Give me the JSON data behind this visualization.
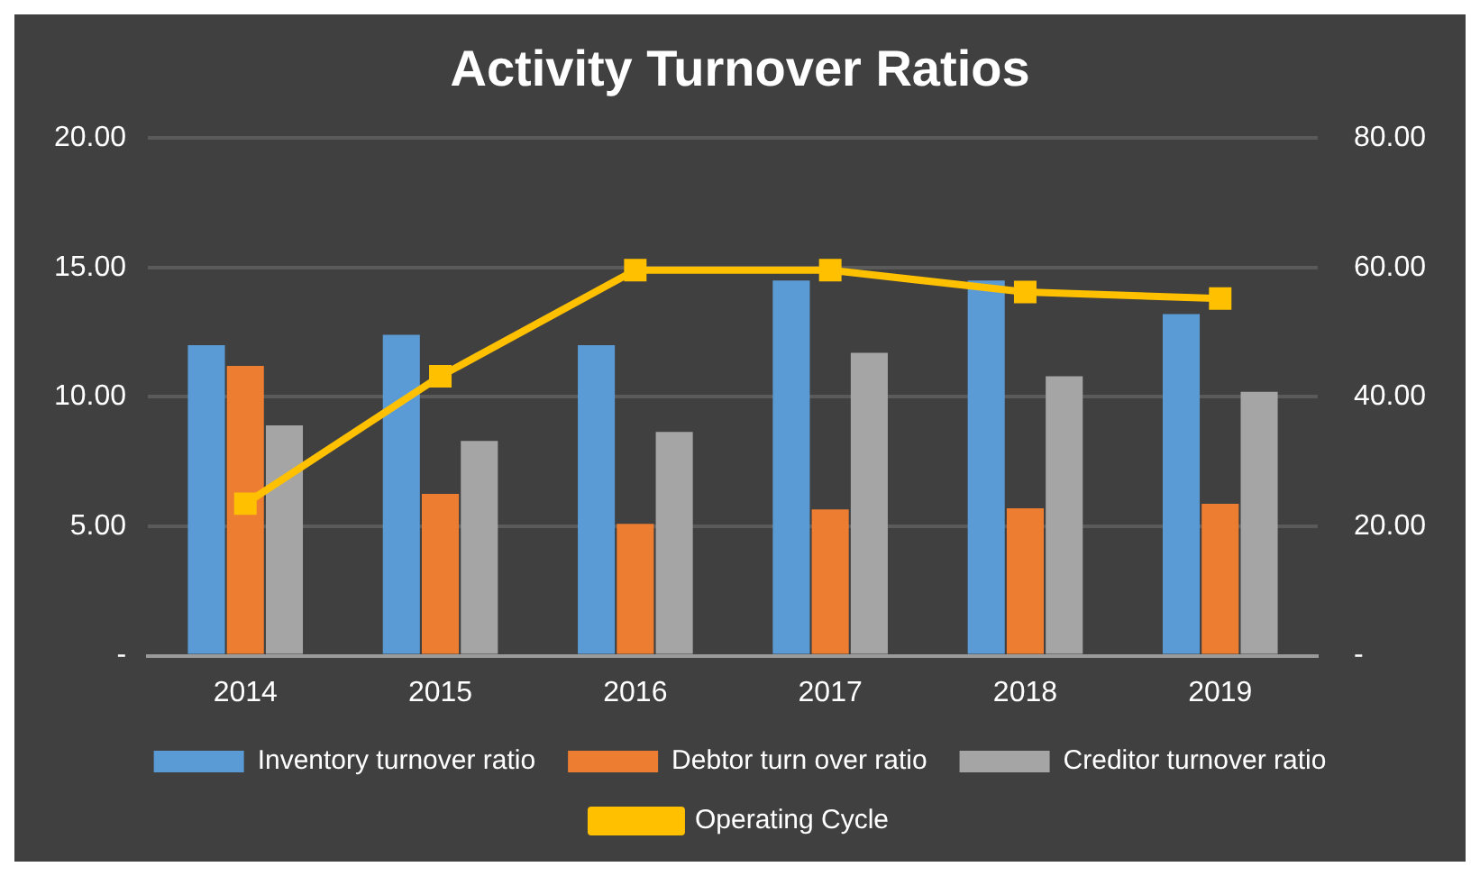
{
  "chart_data": {
    "type": "bar",
    "title": "Activity Turnover Ratios",
    "categories": [
      "2014",
      "2015",
      "2016",
      "2017",
      "2018",
      "2019"
    ],
    "series": [
      {
        "name": "Inventory turnover ratio",
        "color": "#5b9bd5",
        "values": [
          12.0,
          12.4,
          12.0,
          14.5,
          14.5,
          13.2
        ]
      },
      {
        "name": "Debtor turn over ratio",
        "color": "#ed7d31",
        "values": [
          11.2,
          6.25,
          5.1,
          5.65,
          5.7,
          5.87
        ]
      },
      {
        "name": "Creditor turnover ratio",
        "color": "#a5a5a5",
        "values": [
          8.9,
          8.3,
          8.65,
          11.7,
          10.8,
          10.2
        ]
      },
      {
        "name": "Operating Cycle",
        "type": "line",
        "axis": "y2",
        "color": "#ffc000",
        "marker": "square",
        "values": [
          23.5,
          43.2,
          59.6,
          59.6,
          56.2,
          55.2
        ]
      }
    ],
    "ylim": [
      0,
      20
    ],
    "yticks": [
      {
        "value": 0,
        "label": "-"
      },
      {
        "value": 5,
        "label": "5.00"
      },
      {
        "value": 10,
        "label": "10.00"
      },
      {
        "value": 15,
        "label": "15.00"
      },
      {
        "value": 20,
        "label": "20.00"
      }
    ],
    "y2lim": [
      0,
      80
    ],
    "y2ticks": [
      {
        "value": 0,
        "label": "-"
      },
      {
        "value": 20,
        "label": "20.00"
      },
      {
        "value": 40,
        "label": "40.00"
      },
      {
        "value": 60,
        "label": "60.00"
      },
      {
        "value": 80,
        "label": "80.00"
      }
    ],
    "grid": "y",
    "legend": "bottom"
  }
}
